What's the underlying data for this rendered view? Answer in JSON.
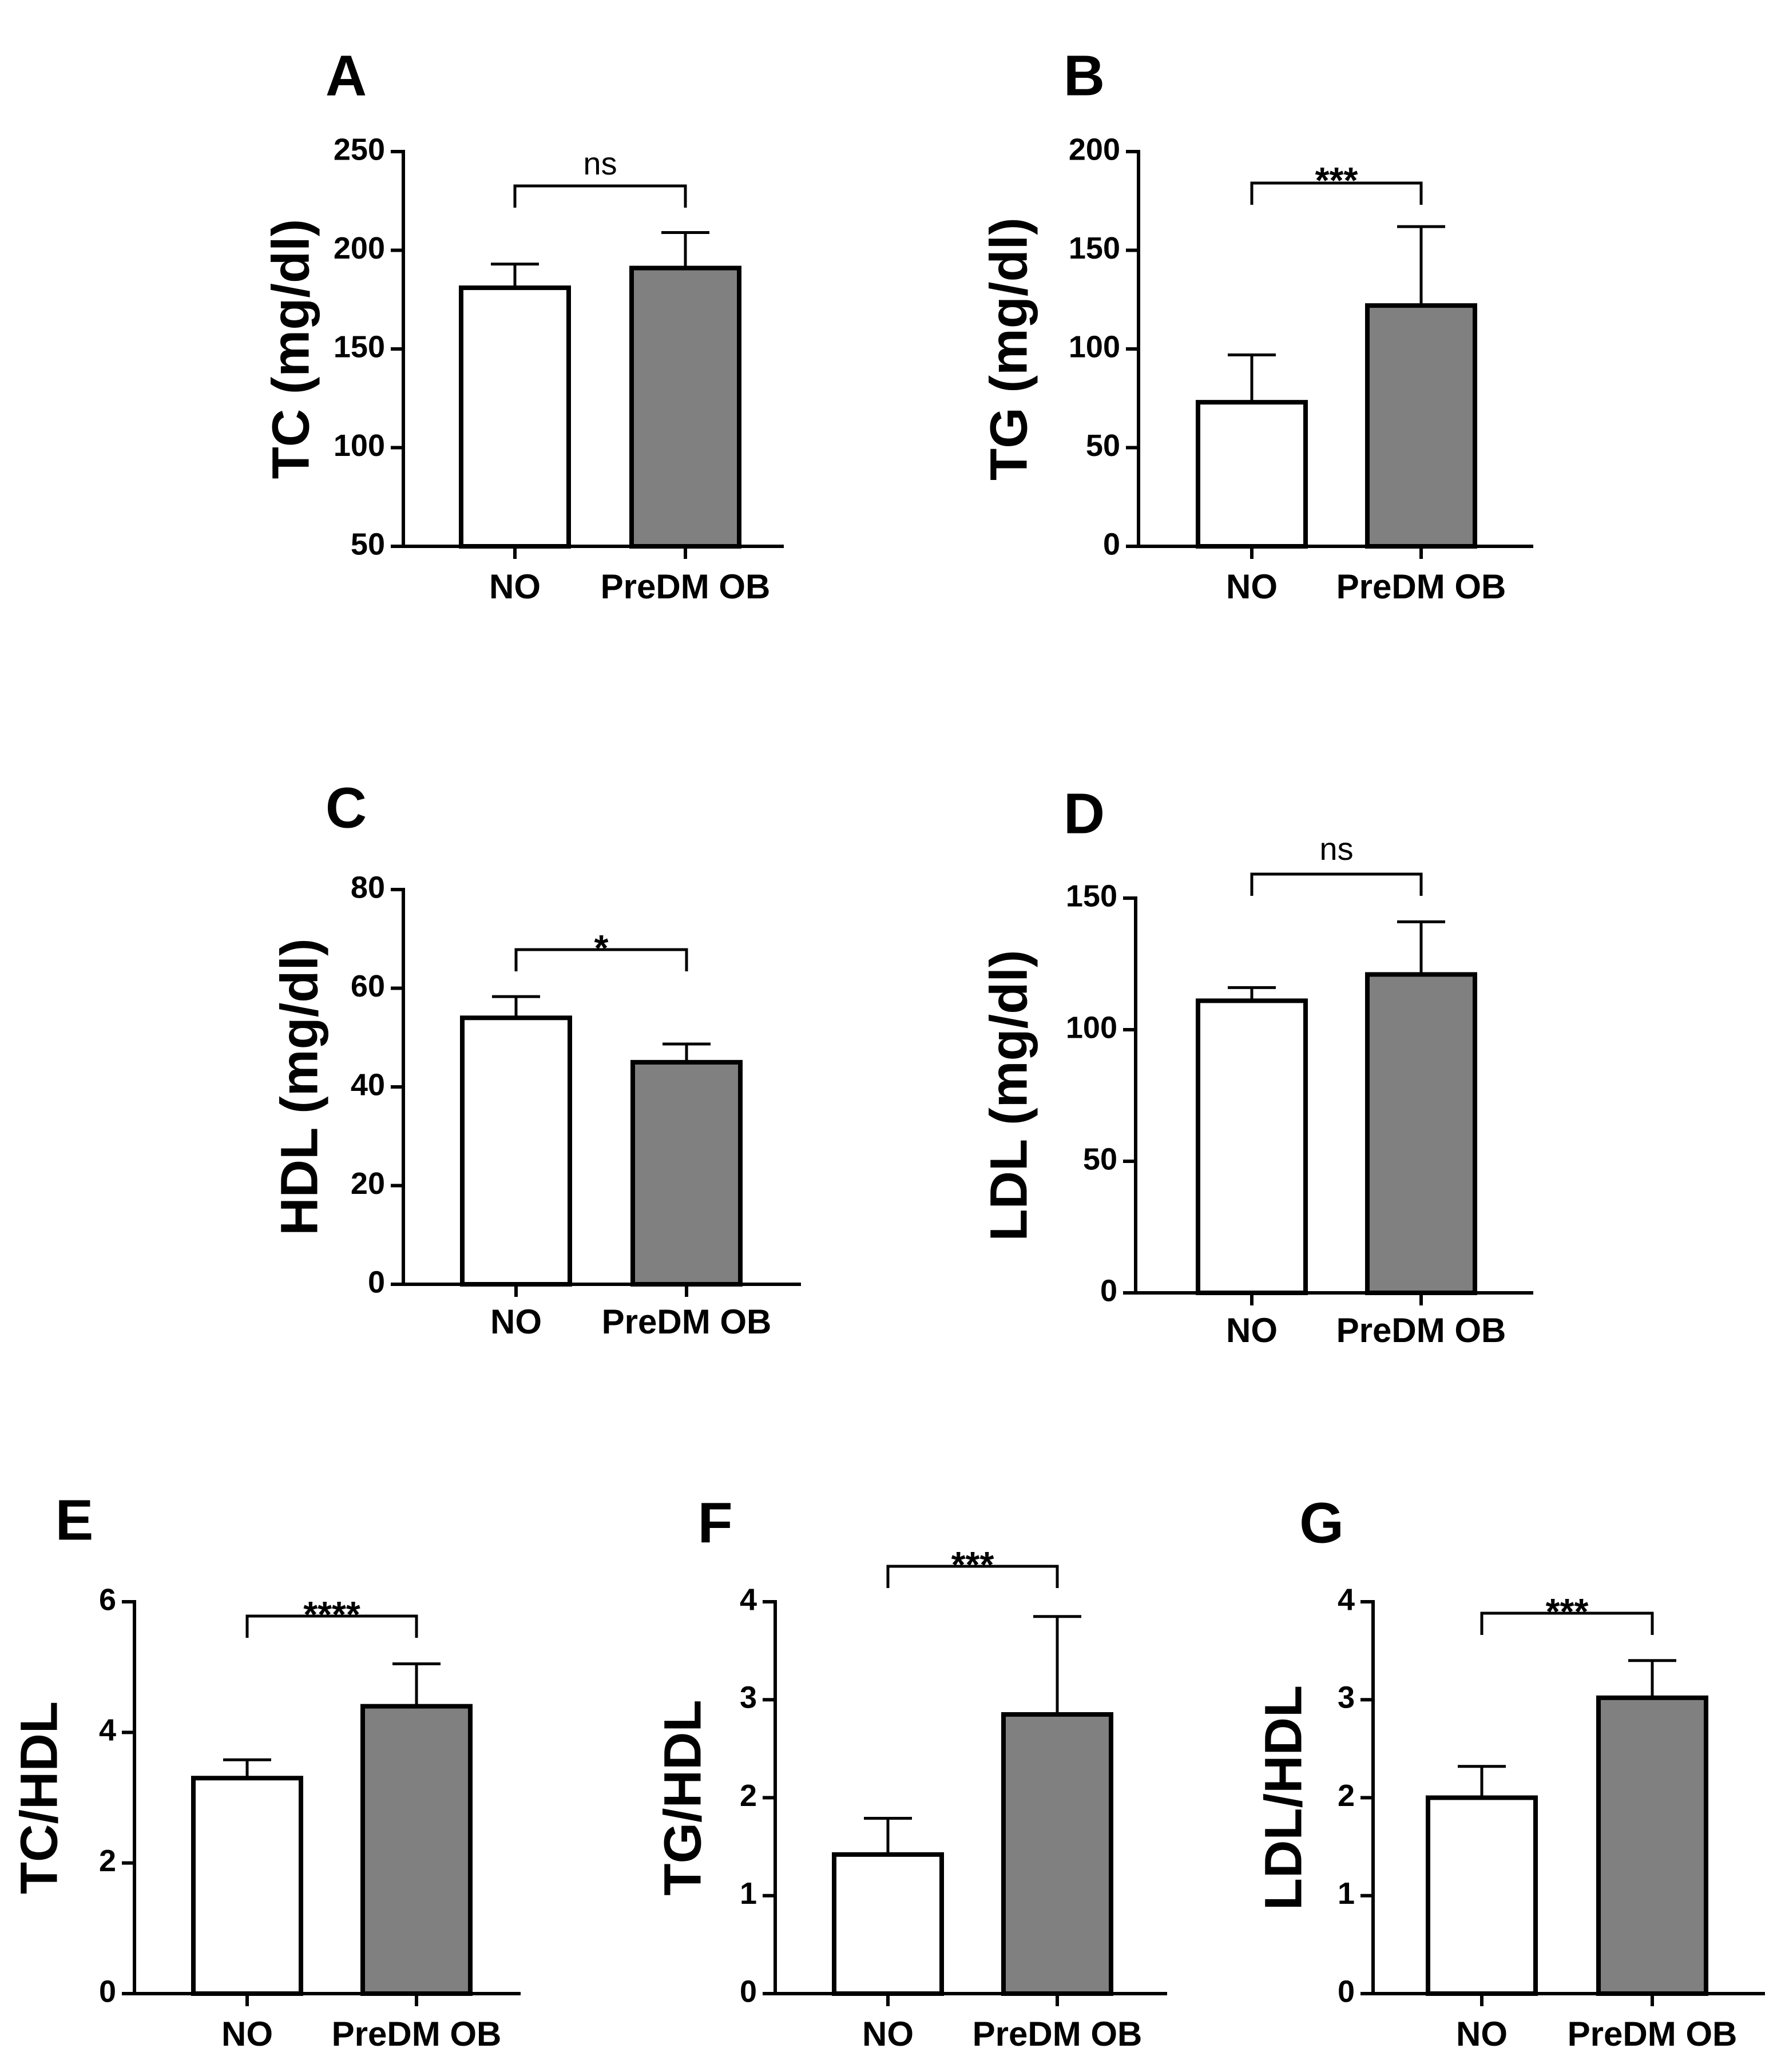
{
  "chart_data": [
    {
      "panel": "A",
      "type": "bar",
      "ylabel": "TC (mg/dl)",
      "ylim": [
        50,
        250
      ],
      "yticks": [
        50,
        100,
        150,
        200,
        250
      ],
      "categories": [
        "NO",
        "PreDM OB"
      ],
      "values": [
        181,
        191
      ],
      "errors": [
        12,
        18
      ],
      "bar_colors": [
        "#ffffff",
        "#808080"
      ],
      "significance": "ns"
    },
    {
      "panel": "B",
      "type": "bar",
      "ylabel": "TG (mg/dl)",
      "ylim": [
        0,
        200
      ],
      "yticks": [
        0,
        50,
        100,
        150,
        200
      ],
      "categories": [
        "NO",
        "PreDM OB"
      ],
      "values": [
        73,
        122
      ],
      "errors": [
        24,
        40
      ],
      "bar_colors": [
        "#ffffff",
        "#808080"
      ],
      "significance": "***"
    },
    {
      "panel": "C",
      "type": "bar",
      "ylabel": "HDL (mg/dl)",
      "ylim": [
        0,
        80
      ],
      "yticks": [
        0,
        20,
        40,
        60,
        80
      ],
      "categories": [
        "NO",
        "PreDM OB"
      ],
      "values": [
        54,
        45
      ],
      "errors": [
        4.3,
        3.7
      ],
      "bar_colors": [
        "#ffffff",
        "#808080"
      ],
      "significance": "*"
    },
    {
      "panel": "D",
      "type": "bar",
      "ylabel": "LDL (mg/dl)",
      "ylim": [
        0,
        150
      ],
      "yticks": [
        0,
        50,
        100,
        150
      ],
      "categories": [
        "NO",
        "PreDM OB"
      ],
      "values": [
        111,
        121
      ],
      "errors": [
        5,
        20
      ],
      "bar_colors": [
        "#ffffff",
        "#808080"
      ],
      "significance": "ns"
    },
    {
      "panel": "E",
      "type": "bar",
      "ylabel": "TC/HDL",
      "ylim": [
        0,
        6
      ],
      "yticks": [
        0,
        2,
        4,
        6
      ],
      "categories": [
        "NO",
        "PreDM OB"
      ],
      "values": [
        3.3,
        4.4
      ],
      "errors": [
        0.28,
        0.65
      ],
      "bar_colors": [
        "#ffffff",
        "#808080"
      ],
      "significance": "****"
    },
    {
      "panel": "F",
      "type": "bar",
      "ylabel": "TG/HDL",
      "ylim": [
        0,
        4
      ],
      "yticks": [
        0,
        1,
        2,
        3,
        4
      ],
      "categories": [
        "NO",
        "PreDM OB"
      ],
      "values": [
        1.42,
        2.85
      ],
      "errors": [
        0.37,
        1.0
      ],
      "bar_colors": [
        "#ffffff",
        "#808080"
      ],
      "significance": "***"
    },
    {
      "panel": "G",
      "type": "bar",
      "ylabel": "LDL/HDL",
      "ylim": [
        0,
        4
      ],
      "yticks": [
        0,
        1,
        2,
        3,
        4
      ],
      "categories": [
        "NO",
        "PreDM OB"
      ],
      "values": [
        2.0,
        3.02
      ],
      "errors": [
        0.32,
        0.38
      ],
      "bar_colors": [
        "#ffffff",
        "#808080"
      ],
      "significance": "***"
    }
  ]
}
